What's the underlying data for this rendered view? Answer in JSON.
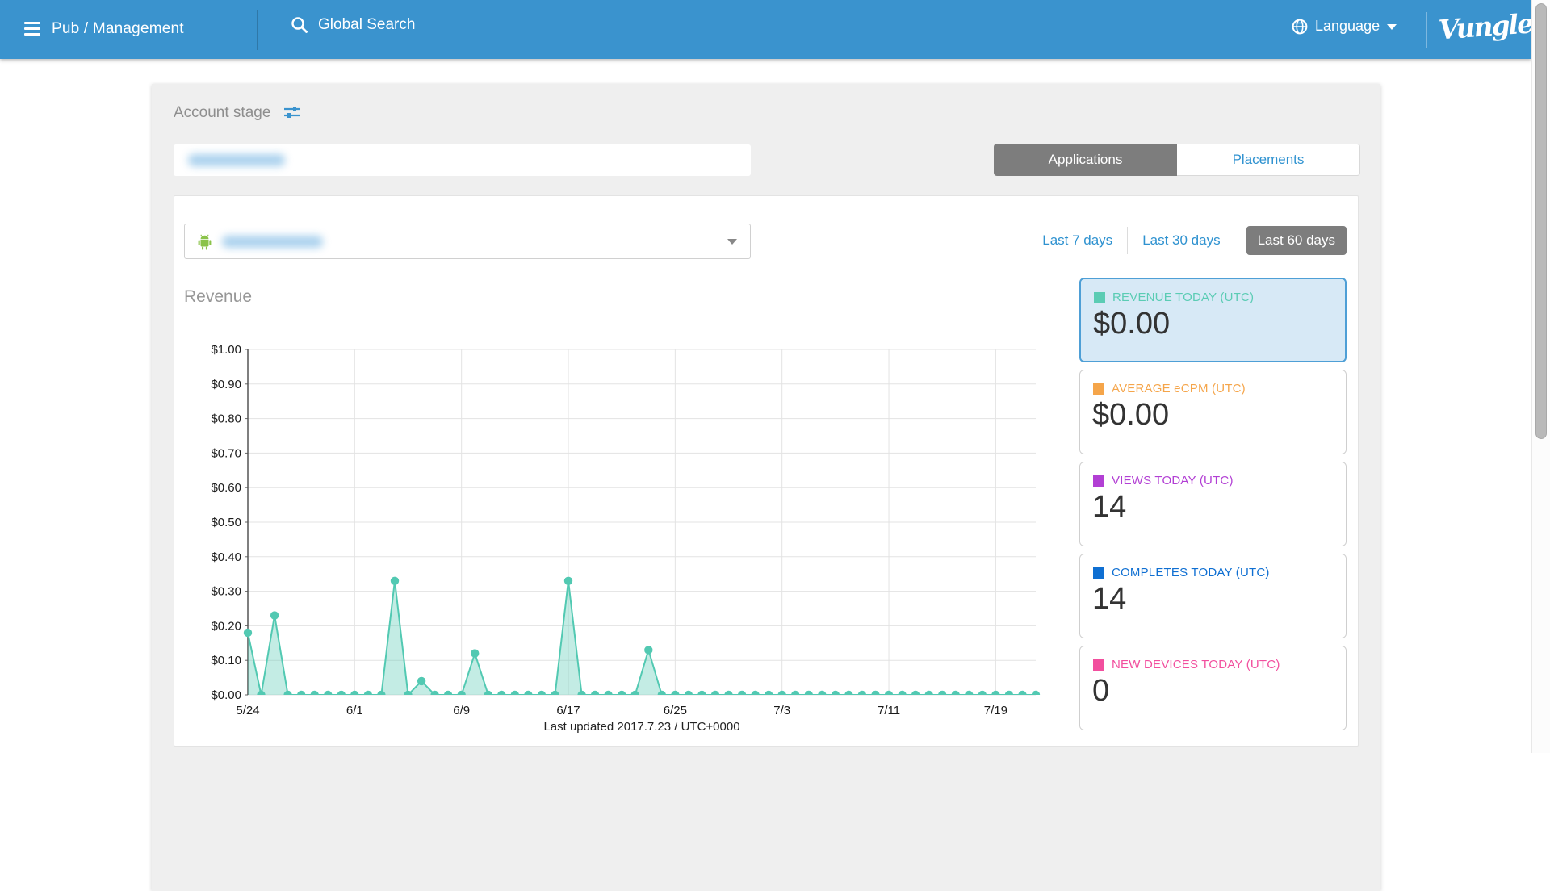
{
  "topbar": {
    "title": "Pub / Management",
    "search_placeholder": "Global Search",
    "language": "Language",
    "logo_text": "Vungle",
    "bg_color": "#3a93ce"
  },
  "page": {
    "section_title": "Account stage",
    "last_updated": "Last updated 2017.7.23 / UTC+0000"
  },
  "view_tabs": {
    "applications": "Applications",
    "placements": "Placements",
    "active": "Applications"
  },
  "range_tabs": [
    {
      "label": "Last 7 days",
      "active": false
    },
    {
      "label": "Last 30 days",
      "active": false
    },
    {
      "label": "Last 60 days",
      "active": true
    }
  ],
  "stat_cards": [
    {
      "label": "REVENUE TODAY (UTC)",
      "value": "$0.00",
      "color": "#5bccb4",
      "selected": true
    },
    {
      "label": "AVERAGE eCPM (UTC)",
      "value": "$0.00",
      "color": "#f5a54a",
      "selected": false
    },
    {
      "label": "VIEWS TODAY (UTC)",
      "value": "14",
      "color": "#b23fd4",
      "selected": false
    },
    {
      "label": "COMPLETES TODAY (UTC)",
      "value": "14",
      "color": "#0f6fd2",
      "selected": false
    },
    {
      "label": "NEW DEVICES TODAY (UTC)",
      "value": "0",
      "color": "#f24f9e",
      "selected": false
    }
  ],
  "chart_data": {
    "type": "area",
    "title": "Revenue",
    "series_color": "#52c9b2",
    "fill_opacity": 0.35,
    "ylim": [
      0,
      1
    ],
    "y_tick_labels": [
      "$1.00",
      "$0.90",
      "$0.80",
      "$0.70",
      "$0.60",
      "$0.50",
      "$0.40",
      "$0.30",
      "$0.20",
      "$0.10",
      "$0.00"
    ],
    "x_tick_labels": [
      "5/24",
      "6/1",
      "6/9",
      "6/17",
      "6/25",
      "7/3",
      "7/11",
      "7/19"
    ],
    "x_tick_every_days": 8,
    "grid": true,
    "dates": [
      "5/24",
      "5/25",
      "5/26",
      "5/27",
      "5/28",
      "5/29",
      "5/30",
      "5/31",
      "6/1",
      "6/2",
      "6/3",
      "6/4",
      "6/5",
      "6/6",
      "6/7",
      "6/8",
      "6/9",
      "6/10",
      "6/11",
      "6/12",
      "6/13",
      "6/14",
      "6/15",
      "6/16",
      "6/17",
      "6/18",
      "6/19",
      "6/20",
      "6/21",
      "6/22",
      "6/23",
      "6/24",
      "6/25",
      "6/26",
      "6/27",
      "6/28",
      "6/29",
      "6/30",
      "7/1",
      "7/2",
      "7/3",
      "7/4",
      "7/5",
      "7/6",
      "7/7",
      "7/8",
      "7/9",
      "7/10",
      "7/11",
      "7/12",
      "7/13",
      "7/14",
      "7/15",
      "7/16",
      "7/17",
      "7/18",
      "7/19",
      "7/20",
      "7/21",
      "7/22"
    ],
    "values": [
      0.18,
      0,
      0.23,
      0,
      0,
      0,
      0,
      0,
      0,
      0,
      0,
      0.33,
      0,
      0.04,
      0,
      0,
      0,
      0.12,
      0,
      0,
      0,
      0,
      0,
      0,
      0.33,
      0,
      0,
      0,
      0,
      0,
      0.13,
      0,
      0,
      0,
      0,
      0,
      0,
      0,
      0,
      0,
      0,
      0,
      0,
      0,
      0,
      0,
      0,
      0,
      0,
      0,
      0,
      0,
      0,
      0,
      0,
      0,
      0,
      0,
      0,
      0
    ]
  }
}
